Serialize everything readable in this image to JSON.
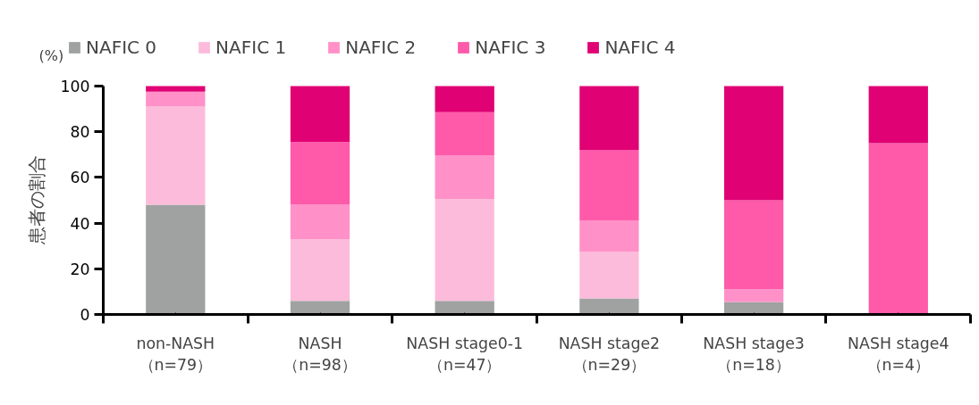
{
  "chart_data": {
    "type": "bar",
    "stacked": true,
    "ylabel": "患者の割合",
    "annotations": [
      "(%)"
    ],
    "categories": [
      "non-NASH\n（n=79）",
      "NASH\n（n=98）",
      "NASH stage0-1\n（n=47）",
      "NASH stage2\n（n=29）",
      "NASH stage3\n（n=18）",
      "NASH stage4\n（n=4）"
    ],
    "series": [
      {
        "name": "NAFIC 0",
        "color": "#a0a2a1",
        "values": [
          48,
          6,
          6,
          7,
          5.5,
          0
        ]
      },
      {
        "name": "NAFIC 1",
        "color": "#fdbbdb",
        "values": [
          43,
          27,
          44.5,
          20.5,
          0,
          0
        ]
      },
      {
        "name": "NAFIC 2",
        "color": "#ff91c8",
        "values": [
          6.5,
          15,
          19,
          13.5,
          5.5,
          0
        ]
      },
      {
        "name": "NAFIC 3",
        "color": "#ff5aaa",
        "values": [
          0,
          27.5,
          19,
          31,
          39,
          75
        ]
      },
      {
        "name": "NAFIC 4",
        "color": "#e00274",
        "values": [
          2.5,
          24.5,
          11.5,
          28,
          50,
          25
        ]
      }
    ],
    "ylim": [
      0,
      100
    ],
    "yticks": [
      0,
      20,
      40,
      60,
      80,
      100
    ],
    "grid": false,
    "legend": "top"
  }
}
